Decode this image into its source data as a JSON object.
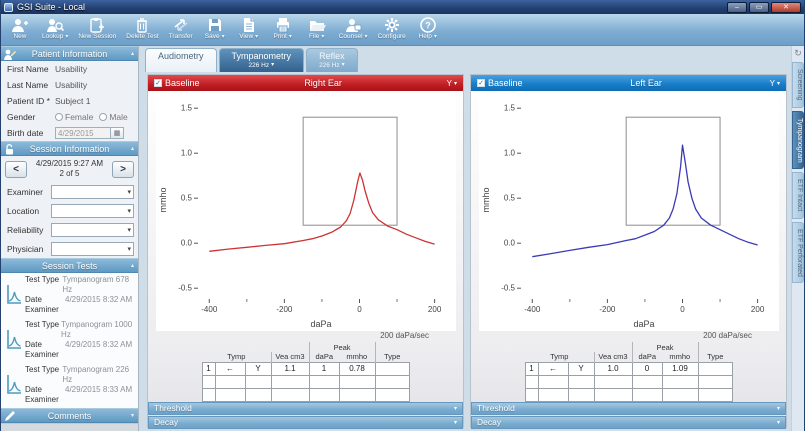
{
  "window": {
    "title": "GSI Suite - Local"
  },
  "toolbar": {
    "items": [
      {
        "label": "New",
        "dropdown": false
      },
      {
        "label": "Lookup",
        "dropdown": true
      },
      {
        "label": "New Session",
        "dropdown": false
      },
      {
        "label": "Delete Test",
        "dropdown": false
      },
      {
        "label": "Transfer",
        "dropdown": false
      },
      {
        "label": "Save",
        "dropdown": true
      },
      {
        "label": "View",
        "dropdown": true
      },
      {
        "label": "Print",
        "dropdown": true
      },
      {
        "label": "File",
        "dropdown": true
      },
      {
        "label": "Counsel",
        "dropdown": true
      },
      {
        "label": "Configure",
        "dropdown": false
      },
      {
        "label": "Help",
        "dropdown": true
      }
    ]
  },
  "sidebar": {
    "patient_info": {
      "title": "Patient Information",
      "first_name_label": "First Name",
      "first_name": "Usability",
      "last_name_label": "Last Name",
      "last_name": "Usability",
      "patient_id_label": "Patient ID *",
      "patient_id": "Subject 1",
      "gender_label": "Gender",
      "gender_options": [
        "Female",
        "Male"
      ],
      "birth_date_label": "Birth date",
      "birth_date": "4/29/2015"
    },
    "session_info": {
      "title": "Session Information",
      "session_date": "4/29/2015   9:27 AM",
      "session_position": "2 of 5",
      "prev_label": "<",
      "next_label": ">",
      "fields": [
        "Examiner",
        "Location",
        "Reliability",
        "Physician"
      ]
    },
    "session_tests": {
      "title": "Session Tests",
      "type_label": "Test Type",
      "date_label": "Date",
      "examiner_label": "Examiner",
      "tests": [
        {
          "type": "Tympanogram 678 Hz",
          "date": "4/29/2015 8:32 AM"
        },
        {
          "type": "Tympanogram 1000 Hz",
          "date": "4/29/2015 8:32 AM"
        },
        {
          "type": "Tympanogram 226 Hz",
          "date": "4/29/2015 8:33 AM"
        }
      ]
    },
    "comments": {
      "title": "Comments"
    }
  },
  "tabs": [
    {
      "label": "Audiometry",
      "sub": ""
    },
    {
      "label": "Tympanometry",
      "sub": "226 Hz"
    },
    {
      "label": "Reflex",
      "sub": "226 Hz"
    }
  ],
  "right_tabs": [
    "Screening",
    "Tympanogram",
    "ETF Intact",
    "ETF Perforated"
  ],
  "panels": [
    {
      "title": "Right Ear",
      "baseline_label": "Baseline",
      "y_menu_label": "Y",
      "sweep_rate": "200 daPa/sec",
      "accent": "#c01e24",
      "table": {
        "group_header": "Tymp",
        "peak_header": "Peak",
        "vea_header": "Vea cm3",
        "dapa_header": "daPa",
        "mmho_header": "mmho",
        "type_header": "Type",
        "row": {
          "num": "1",
          "arrow": "←",
          "flag": "Y",
          "vea": "1.1",
          "dapa": "1",
          "mmho": "0.78",
          "type": ""
        }
      },
      "threshold_label": "Threshold",
      "decay_label": "Decay"
    },
    {
      "title": "Left Ear",
      "baseline_label": "Baseline",
      "y_menu_label": "Y",
      "sweep_rate": "200 daPa/sec",
      "accent": "#0f6cb4",
      "table": {
        "group_header": "Tymp",
        "peak_header": "Peak",
        "vea_header": "Vea cm3",
        "dapa_header": "daPa",
        "mmho_header": "mmho",
        "type_header": "Type",
        "row": {
          "num": "1",
          "arrow": "←",
          "flag": "Y",
          "vea": "1.0",
          "dapa": "0",
          "mmho": "1.09",
          "type": ""
        }
      },
      "threshold_label": "Threshold",
      "decay_label": "Decay"
    }
  ],
  "chart_data": [
    {
      "type": "line",
      "title": "Right Ear tympanogram 226 Hz",
      "xlabel": "daPa",
      "ylabel": "mmho",
      "xlim": [
        -430,
        225
      ],
      "ylim": [
        -0.62,
        1.58
      ],
      "xticks_major": [
        -400,
        -200,
        0,
        200
      ],
      "xticks_minor": [
        -300,
        -100,
        100
      ],
      "yticks": [
        -0.5,
        0.0,
        0.5,
        1.0,
        1.5
      ],
      "normal_box": {
        "x": [
          -150,
          100
        ],
        "y": [
          0.2,
          1.4
        ]
      },
      "color": "#cc3333",
      "grid": false,
      "series": [
        {
          "name": "Right ear baseline",
          "points": [
            [
              -400,
              -0.09
            ],
            [
              -350,
              -0.065
            ],
            [
              -300,
              -0.045
            ],
            [
              -250,
              -0.025
            ],
            [
              -200,
              -0.005
            ],
            [
              -150,
              0.03
            ],
            [
              -125,
              0.05
            ],
            [
              -100,
              0.08
            ],
            [
              -75,
              0.12
            ],
            [
              -50,
              0.18
            ],
            [
              -35,
              0.25
            ],
            [
              -25,
              0.33
            ],
            [
              -15,
              0.48
            ],
            [
              -5,
              0.68
            ],
            [
              1,
              0.78
            ],
            [
              8,
              0.7
            ],
            [
              15,
              0.58
            ],
            [
              25,
              0.44
            ],
            [
              35,
              0.34
            ],
            [
              50,
              0.26
            ],
            [
              75,
              0.19
            ],
            [
              100,
              0.15
            ],
            [
              125,
              0.1
            ],
            [
              150,
              0.06
            ],
            [
              175,
              0.02
            ],
            [
              200,
              -0.01
            ]
          ]
        }
      ]
    },
    {
      "type": "line",
      "title": "Left Ear tympanogram 226 Hz",
      "xlabel": "daPa",
      "ylabel": "mmho",
      "xlim": [
        -430,
        225
      ],
      "ylim": [
        -0.62,
        1.58
      ],
      "xticks_major": [
        -400,
        -200,
        0,
        200
      ],
      "xticks_minor": [
        -300,
        -100,
        100
      ],
      "yticks": [
        -0.5,
        0.0,
        0.5,
        1.0,
        1.5
      ],
      "normal_box": {
        "x": [
          -150,
          100
        ],
        "y": [
          0.2,
          1.4
        ]
      },
      "color": "#3a3ab8",
      "grid": false,
      "series": [
        {
          "name": "Left ear baseline",
          "points": [
            [
              -400,
              -0.15
            ],
            [
              -350,
              -0.115
            ],
            [
              -300,
              -0.08
            ],
            [
              -250,
              -0.045
            ],
            [
              -200,
              -0.015
            ],
            [
              -150,
              0.03
            ],
            [
              -125,
              0.05
            ],
            [
              -100,
              0.09
            ],
            [
              -75,
              0.13
            ],
            [
              -50,
              0.2
            ],
            [
              -35,
              0.28
            ],
            [
              -25,
              0.38
            ],
            [
              -15,
              0.55
            ],
            [
              -5,
              0.85
            ],
            [
              0,
              1.09
            ],
            [
              8,
              0.88
            ],
            [
              15,
              0.68
            ],
            [
              25,
              0.5
            ],
            [
              35,
              0.38
            ],
            [
              50,
              0.28
            ],
            [
              75,
              0.2
            ],
            [
              100,
              0.15
            ],
            [
              125,
              0.1
            ],
            [
              150,
              0.05
            ],
            [
              175,
              0.01
            ],
            [
              200,
              -0.02
            ]
          ]
        }
      ]
    }
  ]
}
